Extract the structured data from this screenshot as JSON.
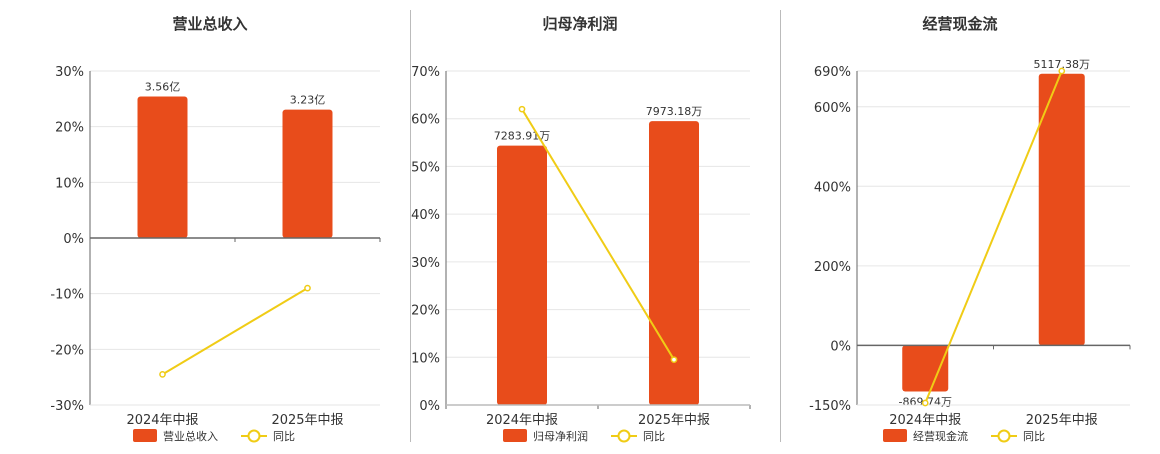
{
  "colors": {
    "bar": "#e84c1b",
    "line": "#f0cc16",
    "grid": "#e6e6e6",
    "axis": "#666666"
  },
  "chart_data": [
    {
      "type": "bar",
      "title": "营业总收入",
      "categories": [
        "2024年中报",
        "2025年中报"
      ],
      "series": [
        {
          "name": "营业总收入",
          "type": "bar",
          "values": [
            3.56,
            3.23
          ],
          "labels": [
            "3.56亿",
            "3.23亿"
          ]
        },
        {
          "name": "同比",
          "type": "line",
          "values": [
            -24.5,
            -9.0
          ]
        }
      ],
      "yticks": [
        "30%",
        "20%",
        "10%",
        "0%",
        "-10%",
        "-20%",
        "-30%"
      ],
      "ylim_pct": [
        -30,
        30
      ],
      "bar_max": 4.2,
      "legend": "bottom"
    },
    {
      "type": "bar",
      "title": "归母净利润",
      "categories": [
        "2024年中报",
        "2025年中报"
      ],
      "series": [
        {
          "name": "归母净利润",
          "type": "bar",
          "values": [
            7283.91,
            7973.18
          ],
          "labels": [
            "7283.91万",
            "7973.18万"
          ]
        },
        {
          "name": "同比",
          "type": "line",
          "values": [
            62.0,
            9.5
          ]
        }
      ],
      "yticks": [
        "70%",
        "60%",
        "50%",
        "40%",
        "30%",
        "20%",
        "10%",
        "0%"
      ],
      "ylim_pct": [
        0,
        70
      ],
      "bar_max": 9380,
      "legend": "bottom"
    },
    {
      "type": "bar",
      "title": "经营现金流",
      "categories": [
        "2024年中报",
        "2025年中报"
      ],
      "series": [
        {
          "name": "经营现金流",
          "type": "bar",
          "values": [
            -869.74,
            5117.38
          ],
          "labels": [
            "-869.74万",
            "5117.38万"
          ]
        },
        {
          "name": "同比",
          "type": "line",
          "values": [
            -145,
            690
          ]
        }
      ],
      "yticks": [
        "690%",
        "600%",
        "400%",
        "200%",
        "0%",
        "-150%"
      ],
      "ylim_pct": [
        -150,
        690
      ],
      "bar_max": 5170,
      "legend": "bottom"
    }
  ]
}
